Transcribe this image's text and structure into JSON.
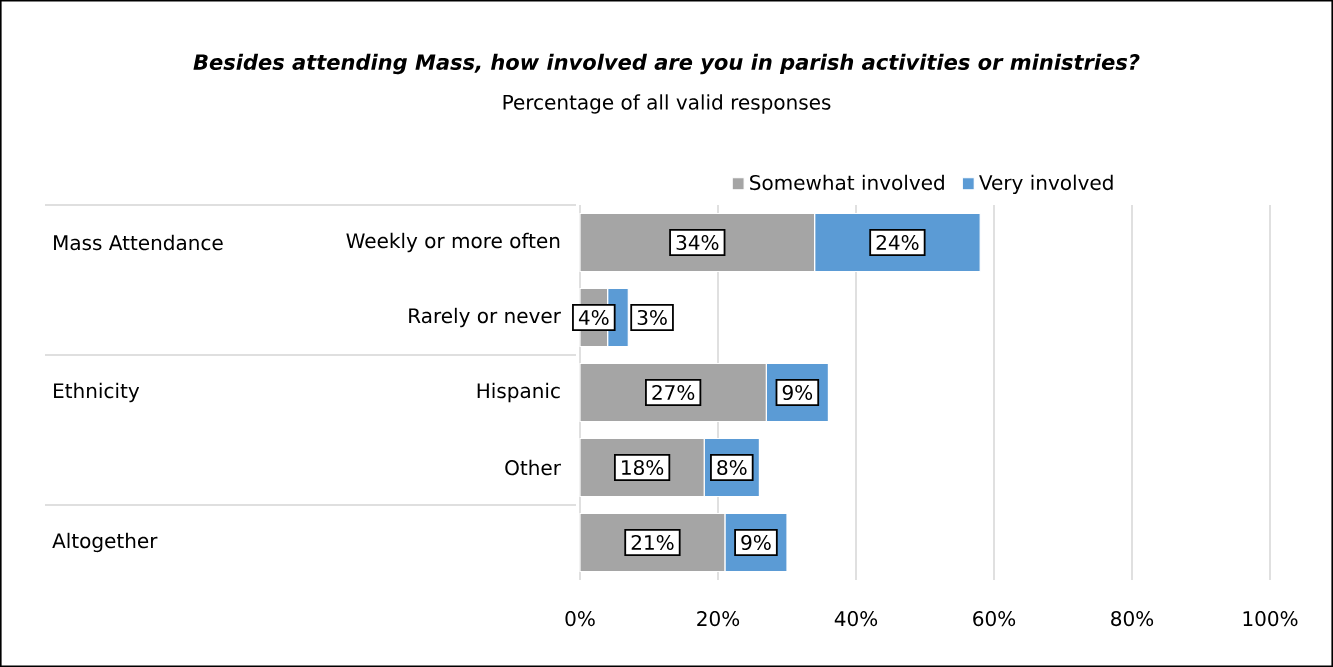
{
  "chart_data": {
    "type": "bar",
    "orientation": "horizontal",
    "stacked": true,
    "title": "Besides attending Mass, how involved are you in parish activities or ministries?",
    "subtitle": "Percentage of all valid responses",
    "categories": [
      "Weekly or more often",
      "Rarely or never",
      "Hispanic",
      "Other",
      null
    ],
    "annotations": [
      "Mass Attendance",
      "Ethnicity",
      "Altogether"
    ],
    "series": [
      {
        "name": "Somewhat involved",
        "color": "#a5a5a5",
        "values": [
          34,
          4,
          27,
          18,
          21
        ],
        "value_labels": [
          "34%",
          "4%",
          "27%",
          "18%",
          "21%"
        ]
      },
      {
        "name": "Very involved",
        "color": "#5b9bd5",
        "values": [
          24,
          3,
          9,
          8,
          9
        ],
        "value_labels": [
          "24%",
          "3%",
          "9%",
          "8%",
          "9%"
        ]
      }
    ],
    "xlim": [
      0,
      100
    ],
    "xticks": [
      {
        "value": 0,
        "label": "0%"
      },
      {
        "value": 20,
        "label": "20%"
      },
      {
        "value": 40,
        "label": "40%"
      },
      {
        "value": 60,
        "label": "60%"
      },
      {
        "value": 80,
        "label": "80%"
      },
      {
        "value": 100,
        "label": "100%"
      }
    ],
    "grid": "x",
    "legend": "top"
  }
}
